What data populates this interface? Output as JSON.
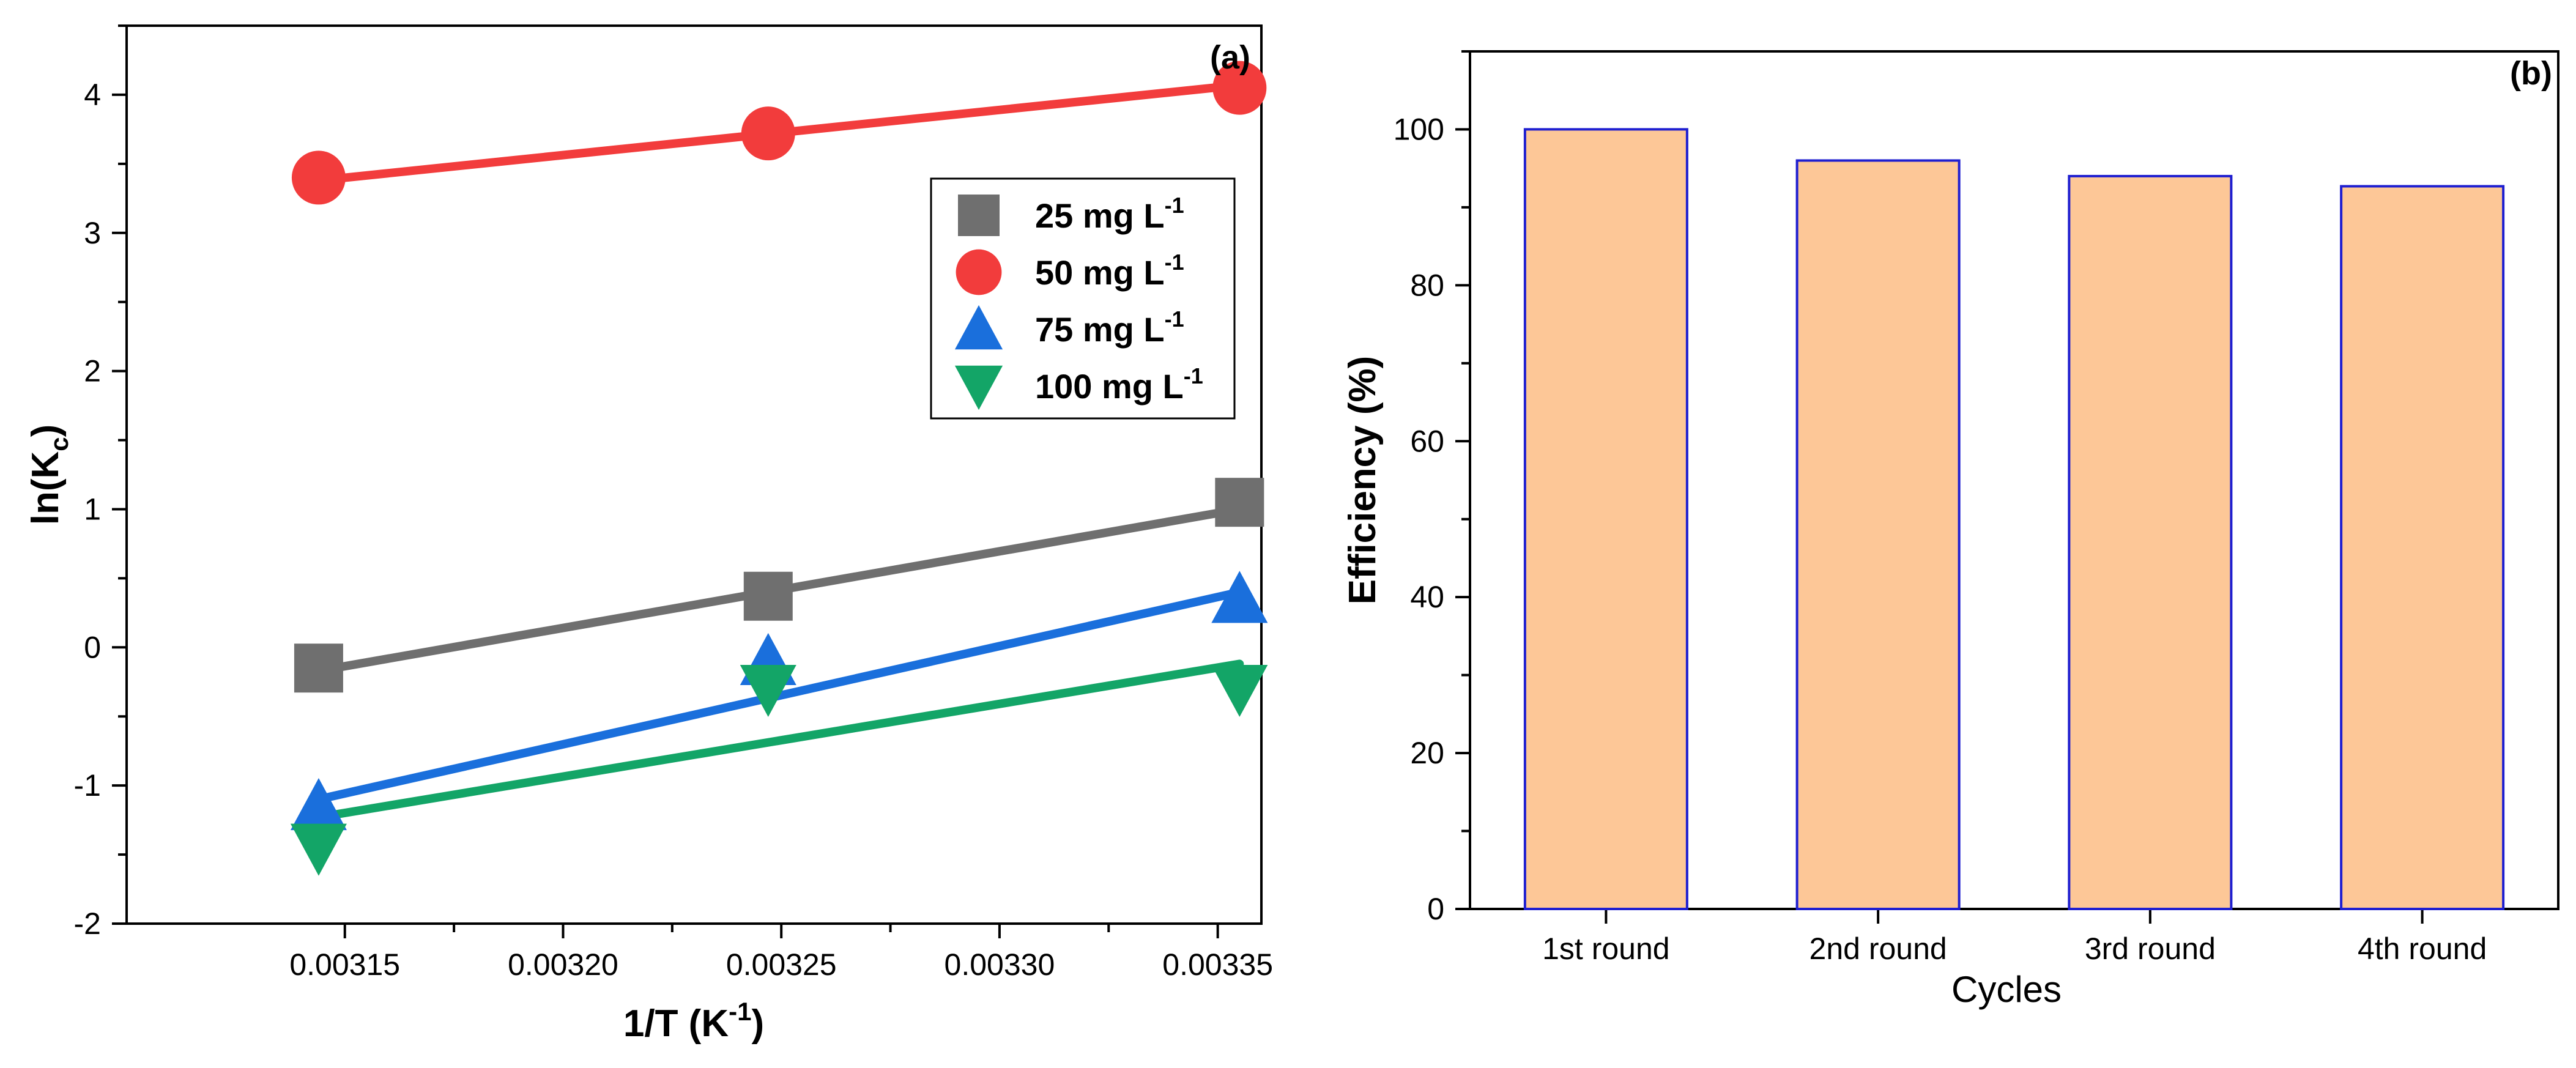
{
  "chart_data": [
    {
      "panel": "(a)",
      "type": "scatter",
      "xlabel": {
        "text": "1/T (K",
        "sup": "-1",
        "close": ")"
      },
      "ylabel": {
        "text": "ln(K",
        "sub": "c",
        "close": ")"
      },
      "xlim": [
        0.0031,
        0.00336
      ],
      "ylim": [
        -2,
        4.5
      ],
      "xticks": [
        0.00315,
        0.0032,
        0.00325,
        0.0033,
        0.00335
      ],
      "xtick_labels": [
        "0.00315",
        "0.00320",
        "0.00325",
        "0.00330",
        "0.00335"
      ],
      "yticks": [
        -2,
        -1,
        0,
        1,
        2,
        3,
        4
      ],
      "ytick_labels": [
        "-2",
        "-1",
        "0",
        "1",
        "2",
        "3",
        "4"
      ],
      "legend_position": "top-right",
      "series": [
        {
          "name": "25 mg L",
          "sup": "-1",
          "marker": "square",
          "color": "#6f6f6f",
          "x": [
            0.003144,
            0.003247,
            0.003355
          ],
          "y": [
            -0.15,
            0.37,
            1.05
          ],
          "fit": [
            -0.17,
            1.0
          ]
        },
        {
          "name": "50 mg L",
          "sup": "-1",
          "marker": "circle",
          "color": "#f23c3c",
          "x": [
            0.003144,
            0.003247,
            0.003355
          ],
          "y": [
            3.4,
            3.72,
            4.05
          ],
          "fit": [
            3.38,
            4.07
          ]
        },
        {
          "name": "75 mg L",
          "sup": "-1",
          "marker": "triangle-up",
          "color": "#1a6fdc",
          "x": [
            0.003144,
            0.003247,
            0.003355
          ],
          "y": [
            -1.15,
            -0.1,
            0.35
          ],
          "fit": [
            -1.1,
            0.4
          ]
        },
        {
          "name": "100 mg L",
          "sup": "-1",
          "marker": "triangle-down",
          "color": "#13a567",
          "x": [
            0.003144,
            0.003247,
            0.003355
          ],
          "y": [
            -1.45,
            -0.3,
            -0.3
          ],
          "fit": [
            -1.23,
            -0.12
          ]
        }
      ]
    },
    {
      "panel": "(b)",
      "type": "bar",
      "xlabel": "Cycles",
      "ylabel": "Efficiency (%)",
      "categories": [
        "1st round",
        "2nd round",
        "3rd round",
        "4th round"
      ],
      "values": [
        100,
        96,
        94,
        92.7
      ],
      "ylim": [
        0,
        110
      ],
      "yticks": [
        0,
        20,
        40,
        60,
        80,
        100
      ],
      "ytick_labels": [
        "0",
        "20",
        "40",
        "60",
        "80",
        "100"
      ],
      "bar_fill": "#fdc797",
      "bar_edge": "#1f1fd0"
    }
  ]
}
